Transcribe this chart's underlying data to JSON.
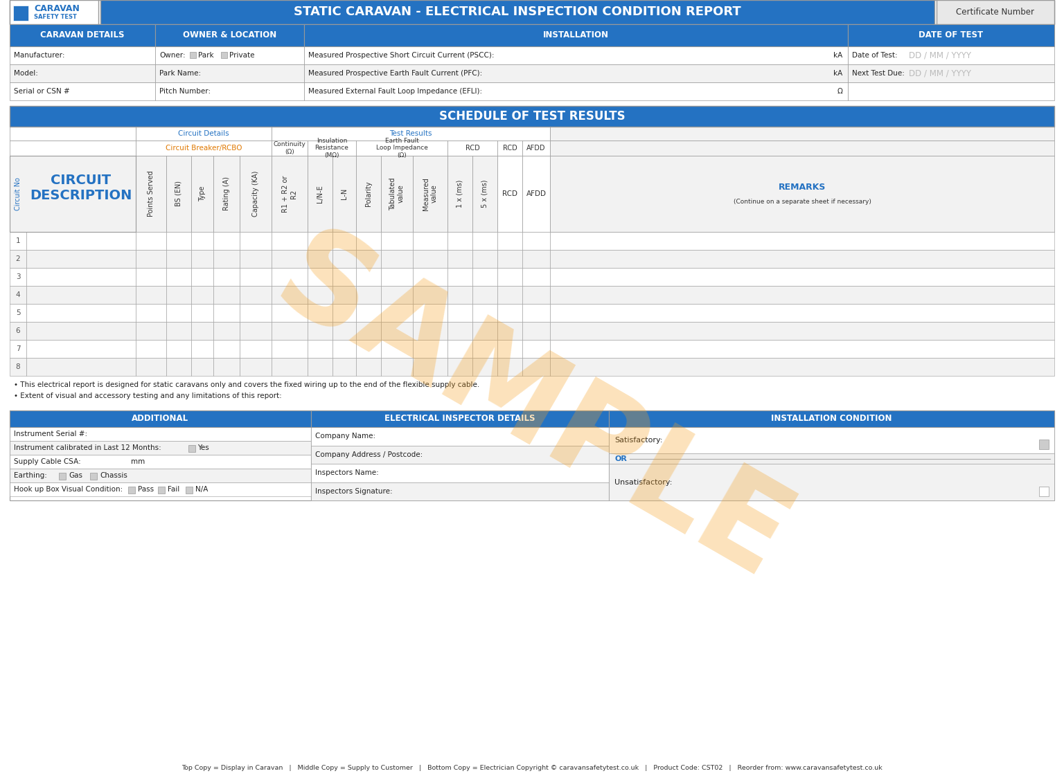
{
  "title": "STATIC CARAVAN - ELECTRICAL INSPECTION CONDITION REPORT",
  "cert_label": "Certificate Number",
  "blue": "#2472c2",
  "blue_light": "#4a90d9",
  "orange_watermark": "#f5a020",
  "bg_color": "#ffffff",
  "blue_text": "#2472c2",
  "section_headers": {
    "caravan": "CARAVAN DETAILS",
    "owner": "OWNER & LOCATION",
    "installation": "INSTALLATION",
    "date": "DATE OF TEST"
  },
  "caravan_rows": [
    "Manufacturer:",
    "Model:",
    "Serial or CSN #"
  ],
  "owner_rows": [
    "Owner:",
    "Park Name:",
    "Pitch Number:"
  ],
  "installation_rows": [
    "Measured Prospective Short Circuit Current (PSCC):",
    "Measured Prospective Earth Fault Current (PFC):",
    "Measured External Fault Loop Impedance (EFLI):"
  ],
  "installation_units": [
    "kA",
    "kA",
    "Ω"
  ],
  "date_labels": [
    "Date of Test:",
    "Next Test Due:"
  ],
  "date_placeholder": "DD / MM / YYYY",
  "schedule_title": "SCHEDULE OF TEST RESULTS",
  "circuit_details_label": "Circuit Details",
  "test_results_label": "Test Results",
  "breaker_label": "Circuit Breaker/RCBO",
  "continuity_label": "Continuity\n(Ω)",
  "insulation_label": "Insulation\nResistance\n(MΩ)",
  "earth_fault_label": "Earth Fault\nLoop Impedance\n(Ω)",
  "rcd_label": "RCD",
  "afdd_label": "AFDD",
  "remarks_label": "REMARKS",
  "remarks_sub": "(Continue on a separate sheet if necessary)",
  "rot_headers": [
    "Points Served",
    "BS (EN)",
    "Type",
    "Rating (A)",
    "Capacity (KA)",
    "R1 + R2 or\nR2",
    "L/N-E",
    "L-N",
    "Polarity",
    "Tabulated\nvalue",
    "Measured\nvalue",
    "1 x (ms)",
    "5 x (ms)"
  ],
  "num_data_rows": 8,
  "bullet_notes": [
    "This electrical report is designed for static caravans only and covers the fixed wiring up to the end of the flexible supply cable.",
    "Extent of visual and accessory testing and any limitations of this report:"
  ],
  "additional_header": "ADDITIONAL",
  "inspector_header": "ELECTRICAL INSPECTOR DETAILS",
  "condition_header": "INSTALLATION CONDITION",
  "additional_rows": [
    "Instrument Serial #:",
    "Instrument calibrated in Last 12 Months:",
    "Supply Cable CSA:",
    "Earthing:",
    "Hook up Box Visual Condition:"
  ],
  "inspector_rows": [
    "Company Name:",
    "Company Address / Postcode:",
    "Inspectors Name:",
    "Inspectors Signature:"
  ],
  "footer": "Top Copy = Display in Caravan   |   Middle Copy = Supply to Customer   |   Bottom Copy = Electrician Copyright © caravansafetytest.co.uk   |   Product Code: CST02   |   Reorder from: www.caravansafetytest.co.uk"
}
